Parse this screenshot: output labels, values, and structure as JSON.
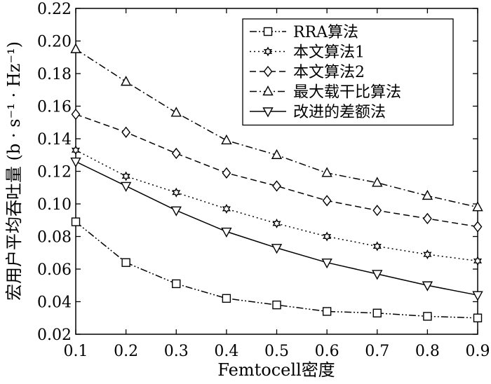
{
  "chart_data": {
    "type": "line",
    "x": [
      0.1,
      0.2,
      0.3,
      0.4,
      0.5,
      0.6,
      0.7,
      0.8,
      0.9
    ],
    "x_ticks": [
      "0.1",
      "0.2",
      "0.3",
      "0.4",
      "0.5",
      "0.6",
      "0.7",
      "0.8",
      "0.9"
    ],
    "y_ticks": [
      "0.02",
      "0.04",
      "0.06",
      "0.08",
      "0.10",
      "0.12",
      "0.14",
      "0.16",
      "0.18",
      "0.20",
      "0.22"
    ],
    "xlim": [
      0.1,
      0.9
    ],
    "ylim": [
      0.02,
      0.22
    ],
    "xlabel": "Femtocell密度",
    "ylabel": "宏用户平均吞吐量 (b · s⁻¹ · Hz⁻¹)",
    "grid": false,
    "legend_position": "top-right",
    "series": [
      {
        "name": "RRA算法",
        "marker": "square",
        "dash": "dashdotdot",
        "values": [
          0.089,
          0.064,
          0.051,
          0.042,
          0.038,
          0.034,
          0.033,
          0.031,
          0.03
        ]
      },
      {
        "name": "本文算法1",
        "marker": "star",
        "dash": "dotted",
        "values": [
          0.133,
          0.117,
          0.107,
          0.097,
          0.088,
          0.08,
          0.074,
          0.069,
          0.065
        ]
      },
      {
        "name": "本文算法2",
        "marker": "diamond",
        "dash": "dashed",
        "values": [
          0.155,
          0.144,
          0.131,
          0.119,
          0.111,
          0.102,
          0.096,
          0.091,
          0.086
        ]
      },
      {
        "name": "最大载干比算法",
        "marker": "triangle-up",
        "dash": "dashdot",
        "values": [
          0.195,
          0.175,
          0.156,
          0.139,
          0.13,
          0.119,
          0.113,
          0.105,
          0.098
        ]
      },
      {
        "name": "改进的差额法",
        "marker": "triangle-down",
        "dash": "solid",
        "values": [
          0.126,
          0.111,
          0.096,
          0.083,
          0.073,
          0.064,
          0.057,
          0.05,
          0.044
        ]
      }
    ]
  }
}
